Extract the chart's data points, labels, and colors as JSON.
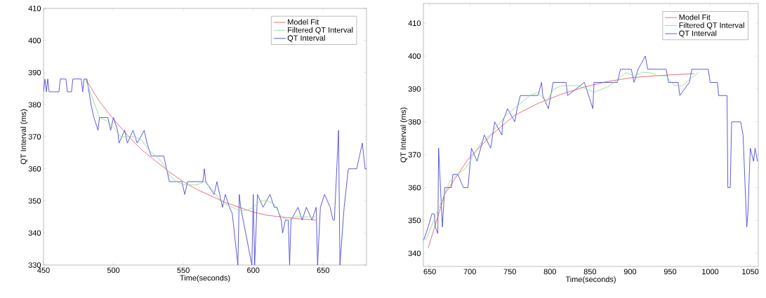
{
  "chart_data": [
    {
      "type": "line",
      "xlabel": "Time(seconds)",
      "ylabel": "QT Interval (ms)",
      "xlim": [
        450,
        681
      ],
      "ylim": [
        330,
        410
      ],
      "xticks": [
        450,
        500,
        550,
        600,
        650
      ],
      "yticks": [
        330,
        340,
        350,
        360,
        370,
        380,
        390,
        400,
        410
      ],
      "legend": "top right",
      "grid": false,
      "series": [
        {
          "name": "Model Fit",
          "color": "#e06070",
          "x": [
            480,
            490,
            500,
            510,
            520,
            530,
            540,
            550,
            560,
            570,
            580,
            590,
            600,
            610,
            620,
            630,
            645
          ],
          "values": [
            388,
            381,
            375.5,
            370.5,
            366,
            362.5,
            359,
            356,
            353.5,
            351.5,
            349.5,
            348,
            346.5,
            345.5,
            345,
            344.5,
            344
          ]
        },
        {
          "name": "Filtered QT Interval",
          "color": "#90d890",
          "line_style": "dashed",
          "x": [
            480,
            485,
            490,
            495,
            500,
            505,
            510,
            515,
            520,
            525,
            530,
            535,
            540,
            545,
            550,
            555,
            560,
            565,
            570,
            575,
            580,
            585,
            590,
            595,
            600,
            605,
            610,
            615,
            620,
            625,
            630,
            635,
            640,
            645
          ],
          "values": [
            388,
            382,
            376,
            375,
            373,
            370,
            370,
            370,
            369,
            366,
            364,
            362,
            358,
            356,
            355,
            355,
            355,
            356,
            354,
            351,
            349,
            348,
            347,
            347,
            348,
            350,
            350,
            349,
            345,
            344,
            345,
            345,
            345,
            345
          ]
        },
        {
          "name": "QT Interval",
          "color": "#4a4ad8",
          "x": [
            450,
            451,
            452,
            453,
            454,
            461,
            462,
            466,
            467,
            470,
            471,
            477,
            478,
            479,
            481,
            484,
            486,
            489,
            490,
            496,
            498,
            500,
            503,
            504,
            508,
            510,
            514,
            517,
            522,
            524,
            527,
            536,
            540,
            549,
            551,
            553,
            554,
            564,
            565,
            566,
            572,
            574,
            578,
            580,
            583,
            585,
            589,
            590,
            591,
            599,
            600,
            601,
            603,
            607,
            612,
            615,
            617,
            620,
            621,
            623,
            625,
            626,
            627,
            632,
            635,
            638,
            642,
            645,
            646,
            648,
            651,
            655,
            657,
            658,
            661,
            662,
            665,
            667,
            668,
            674,
            676,
            678,
            680,
            681
          ],
          "values": [
            384,
            388,
            384,
            388,
            384,
            384,
            388,
            388,
            384,
            384,
            388,
            388,
            384,
            388,
            388,
            380,
            376,
            372,
            376,
            376,
            372,
            376,
            372,
            368,
            372,
            368,
            372,
            368,
            372,
            368,
            364,
            364,
            356,
            356,
            352,
            356,
            356,
            356,
            360,
            356,
            352,
            356,
            348,
            352,
            348,
            346,
            330,
            352,
            348,
            330,
            352,
            330,
            352,
            348,
            352,
            348,
            348,
            344,
            340,
            344,
            344,
            330,
            344,
            348,
            344,
            348,
            344,
            348,
            330,
            348,
            352,
            348,
            344,
            344,
            372,
            330,
            348,
            356,
            360,
            360,
            364,
            368,
            360,
            360
          ]
        }
      ]
    },
    {
      "type": "line",
      "xlabel": "Time(seconds)",
      "ylabel": "QT Interval (ms)",
      "xlim": [
        642,
        1060
      ],
      "ylim": [
        336,
        416
      ],
      "xticks": [
        650,
        700,
        750,
        800,
        850,
        900,
        950,
        1000,
        1050
      ],
      "yticks": [
        340,
        350,
        360,
        370,
        380,
        390,
        400,
        410
      ],
      "legend": "top right",
      "grid": false,
      "series": [
        {
          "name": "Model Fit",
          "color": "#e06070",
          "x": [
            648,
            668.6,
            697.7,
            726.8,
            756,
            785,
            814,
            843,
            872,
            901.5,
            930.6,
            980
          ],
          "values": [
            341.6,
            358,
            368.6,
            376,
            382,
            385.6,
            388.4,
            390.6,
            392.3,
            393.4,
            394,
            394.7
          ]
        },
        {
          "name": "Filtered QT Interval",
          "color": "#90d890",
          "line_style": "dashed",
          "x": [
            645,
            655,
            665,
            675,
            685,
            695,
            705,
            715,
            725,
            735,
            745,
            755,
            765,
            775,
            785,
            795,
            805,
            815,
            825,
            835,
            845,
            855,
            865,
            875,
            885,
            895,
            905,
            915,
            925,
            935,
            945,
            955,
            965,
            975,
            985
          ],
          "values": [
            344,
            350,
            356,
            362,
            364,
            366,
            370,
            374,
            376,
            379,
            382,
            384,
            386,
            388,
            389,
            386,
            390,
            391,
            391,
            391,
            390,
            389,
            390,
            391,
            393,
            395,
            394,
            395,
            395,
            394,
            394,
            391,
            391,
            393,
            395
          ]
        },
        {
          "name": "QT Interval",
          "color": "#4a4ad8",
          "x": [
            642.4,
            645,
            648,
            652.6,
            655.5,
            657,
            660,
            661,
            662.8,
            665.7,
            668.6,
            677,
            678.8,
            685,
            692,
            697.7,
            702,
            709,
            718,
            726,
            731,
            740,
            741,
            747,
            756,
            759,
            763,
            785,
            789.5,
            791,
            798,
            801,
            804,
            820,
            822,
            843,
            853.5,
            855,
            884,
            888,
            901.5,
            905,
            910,
            919,
            922,
            945,
            948,
            960,
            962,
            974,
            977,
            997.5,
            1000,
            1009,
            1010.5,
            1021,
            1022,
            1025,
            1026.7,
            1038,
            1041,
            1045.6,
            1047,
            1050,
            1054,
            1056,
            1059
          ],
          "values": [
            344,
            null,
            348,
            352,
            352,
            348,
            346,
            372,
            null,
            348,
            360,
            360,
            364,
            364,
            360,
            360,
            372,
            368,
            376,
            372,
            380,
            376,
            380,
            384,
            380,
            384,
            388,
            388,
            392,
            388,
            384,
            388,
            392,
            392,
            388,
            392,
            384,
            392,
            392,
            396,
            396,
            392,
            396,
            400,
            396,
            396,
            392,
            392,
            388,
            392,
            396,
            396,
            392,
            392,
            388,
            388,
            360,
            360,
            380,
            380,
            376,
            348,
            352,
            372,
            368,
            372,
            368
          ]
        }
      ]
    }
  ]
}
